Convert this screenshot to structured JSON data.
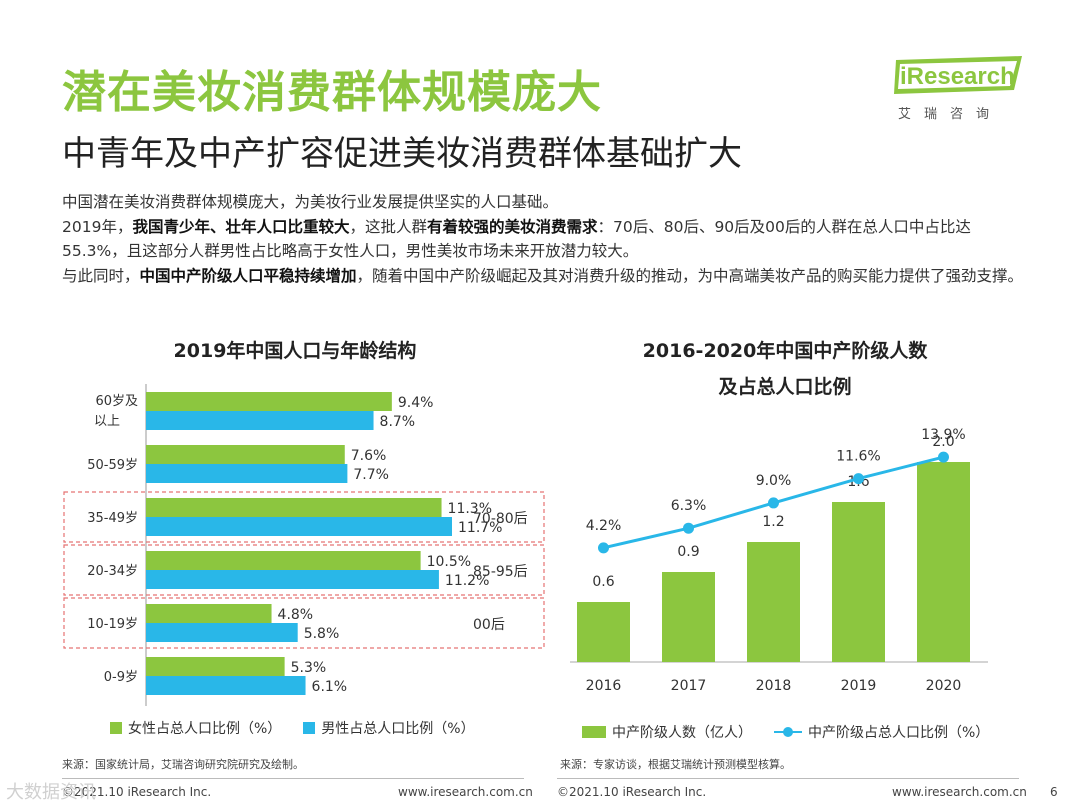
{
  "page": {
    "title": "潜在美妆消费群体规模庞大",
    "subtitle": "中青年及中产扩容促进美妆消费群体基础扩大",
    "page_number": "6"
  },
  "logo": {
    "text": "iResearch",
    "subtext": "艾瑞咨询"
  },
  "intro": {
    "p1": "中国潜在美妆消费群体规模庞大，为美妆行业发展提供坚实的人口基础。",
    "p2_a": "2019年，",
    "p2_b": "我国青少年、壮年人口比重较大",
    "p2_c": "，这批人群",
    "p2_d": "有着较强的美妆消费需求",
    "p2_e": "：70后、80后、90后及00后的人群在总人口中占比达55.3%，且这部分人群男性占比略高于女性人口，男性美妆市场未来开放潜力较大。",
    "p3_a": "与此同时，",
    "p3_b": "中国中产阶级人口平稳持续增加",
    "p3_c": "，随着中国中产阶级崛起及其对消费升级的推动，为中高端美妆产品的购买能力提供了强劲支撑。"
  },
  "colors": {
    "green": "#8cc63f",
    "blue": "#29b7e8",
    "dash": "#e57373"
  },
  "chart_data": [
    {
      "type": "bar",
      "orientation": "horizontal",
      "title": "2019年中国人口与年龄结构",
      "categories": [
        "60岁及以上",
        "50-59岁",
        "35-49岁",
        "20-34岁",
        "10-19岁",
        "0-9岁"
      ],
      "series": [
        {
          "name": "女性占总人口比例（%）",
          "values": [
            9.4,
            7.6,
            11.3,
            10.5,
            4.8,
            5.3
          ],
          "labels": [
            "9.4%",
            "7.6%",
            "11.3%",
            "10.5%",
            "4.8%",
            "5.3%"
          ]
        },
        {
          "name": "男性占总人口比例（%）",
          "values": [
            8.7,
            7.7,
            11.7,
            11.2,
            5.8,
            6.1
          ],
          "labels": [
            "8.7%",
            "7.7%",
            "11.7%",
            "11.2%",
            "5.8%",
            "6.1%"
          ]
        }
      ],
      "annotations": [
        {
          "category": "35-49岁",
          "text": "70-80后"
        },
        {
          "category": "20-34岁",
          "text": "85-95后"
        },
        {
          "category": "10-19岁",
          "text": "00后"
        }
      ],
      "xlim": [
        0,
        13
      ]
    },
    {
      "type": "bar+line",
      "title_line1": "2016-2020年中国中产阶级人数",
      "title_line2": "及占总人口比例",
      "categories": [
        "2016",
        "2017",
        "2018",
        "2019",
        "2020"
      ],
      "bar_series": {
        "name": "中产阶级人数（亿人）",
        "values": [
          0.6,
          0.9,
          1.2,
          1.6,
          2.0
        ],
        "labels": [
          "0.6",
          "0.9",
          "1.2",
          "1.6",
          "2.0"
        ]
      },
      "line_series": {
        "name": "中产阶级占总人口比例（%）",
        "values": [
          4.2,
          6.3,
          9.0,
          11.6,
          13.9
        ],
        "labels": [
          "4.2%",
          "6.3%",
          "9.0%",
          "11.6%",
          "13.9%"
        ]
      },
      "ylim_bar": [
        0,
        2.5
      ],
      "ylim_line": [
        -8,
        20
      ]
    }
  ],
  "sources": {
    "left": "来源：国家统计局，艾瑞咨询研究院研究及绘制。",
    "right": "来源：专家访谈，根据艾瑞统计预测模型核算。"
  },
  "footer": {
    "left_copyright": "©2021.10 iResearch Inc.",
    "left_url": "www.iresearch.com.cn",
    "right_copyright": "©2021.10 iResearch Inc.",
    "right_url": "www.iresearch.com.cn"
  },
  "watermark": "大数据资讯"
}
